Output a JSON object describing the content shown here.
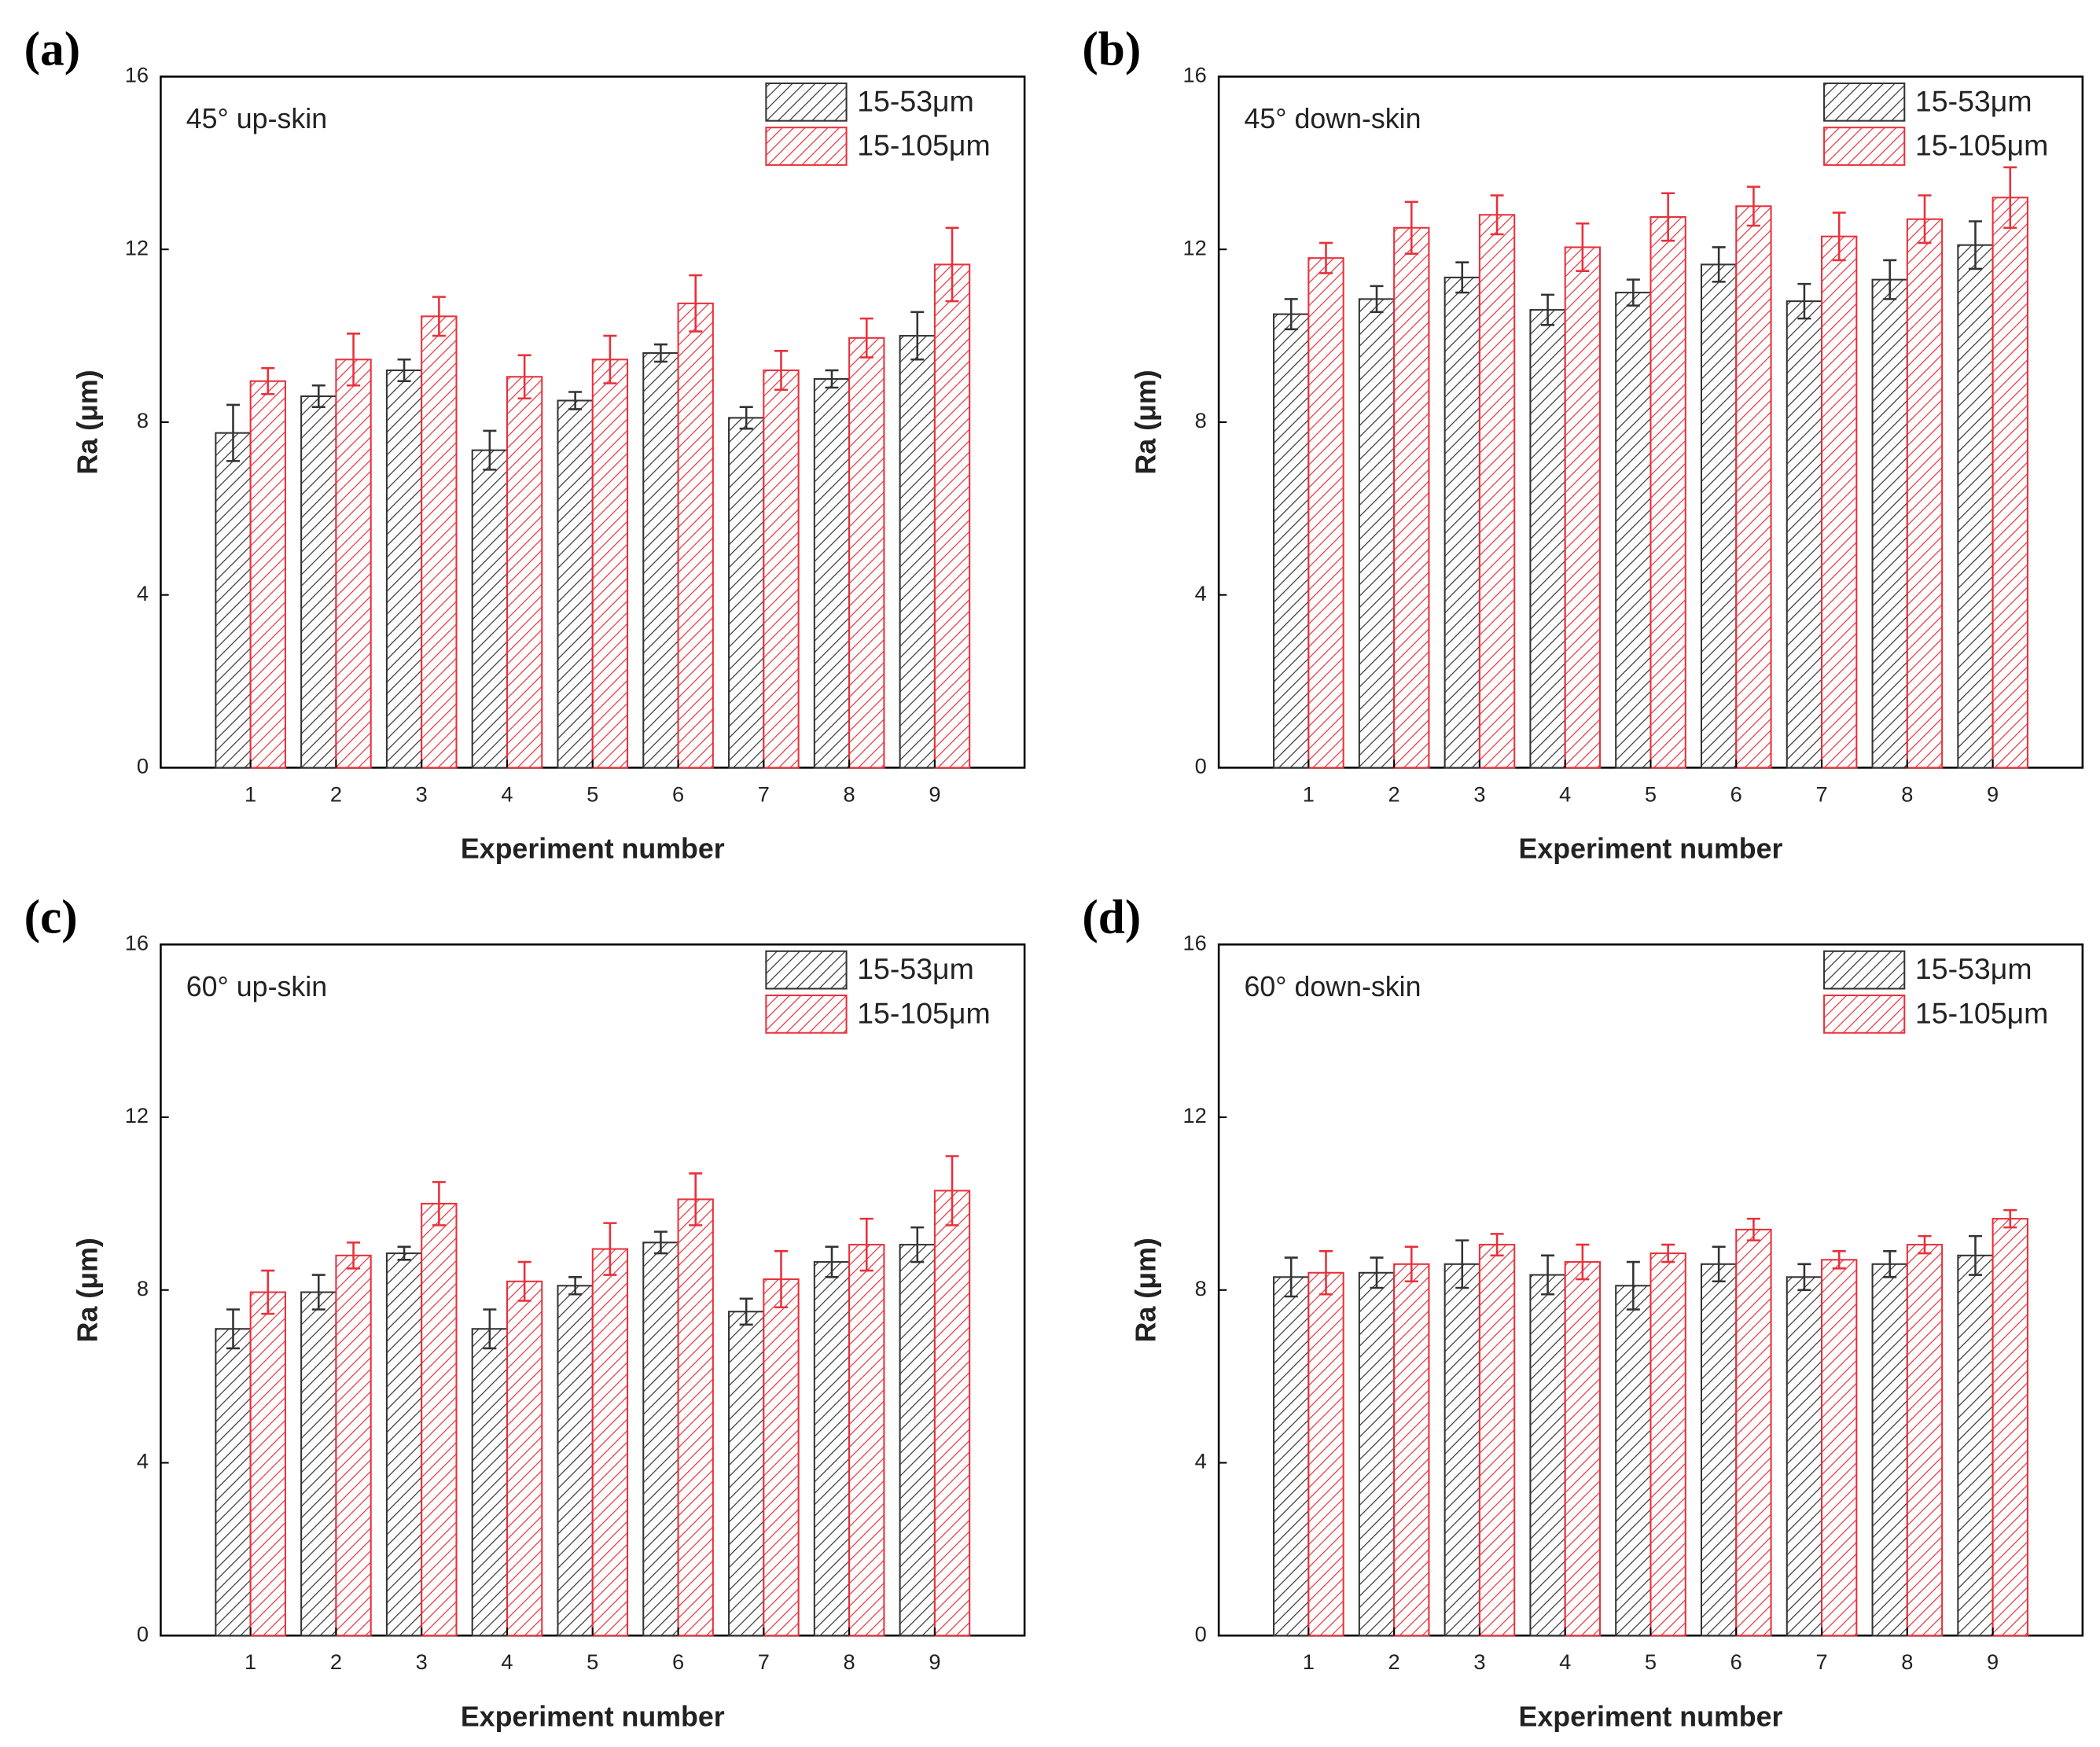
{
  "chart_data": [
    {
      "type": "bar",
      "panel_label": "(a)",
      "annotation": "45° up-skin",
      "x_label": "Experiment number",
      "y_label": "Ra (μm)",
      "categories": [
        "1",
        "2",
        "3",
        "4",
        "5",
        "6",
        "7",
        "8",
        "9"
      ],
      "series": [
        {
          "name": "15-53μm",
          "color": "#333333",
          "values": [
            7.75,
            8.6,
            9.2,
            7.35,
            8.5,
            9.6,
            8.1,
            9.0,
            10.0
          ],
          "errors": [
            0.65,
            0.25,
            0.25,
            0.45,
            0.2,
            0.2,
            0.25,
            0.2,
            0.55
          ]
        },
        {
          "name": "15-105μm",
          "color": "#e8303a",
          "values": [
            8.95,
            9.45,
            10.45,
            9.05,
            9.45,
            10.75,
            9.2,
            9.95,
            11.65
          ],
          "errors": [
            0.3,
            0.6,
            0.45,
            0.5,
            0.55,
            0.65,
            0.45,
            0.45,
            0.85
          ]
        }
      ],
      "ylim": [
        0,
        16
      ],
      "yticks": [
        0,
        4,
        8,
        12,
        16
      ],
      "grid": false,
      "legend": "upper right"
    },
    {
      "type": "bar",
      "panel_label": "(b)",
      "annotation": "45° down-skin",
      "x_label": "Experiment number",
      "y_label": "Ra (μm)",
      "categories": [
        "1",
        "2",
        "3",
        "4",
        "5",
        "6",
        "7",
        "8",
        "9"
      ],
      "series": [
        {
          "name": "15-53μm",
          "color": "#333333",
          "values": [
            10.5,
            10.85,
            11.35,
            10.6,
            11.0,
            11.65,
            10.8,
            11.3,
            12.1
          ],
          "errors": [
            0.35,
            0.3,
            0.35,
            0.35,
            0.3,
            0.4,
            0.4,
            0.45,
            0.55
          ]
        },
        {
          "name": "15-105μm",
          "color": "#e8303a",
          "values": [
            11.8,
            12.5,
            12.8,
            12.05,
            12.75,
            13.0,
            12.3,
            12.7,
            13.2
          ],
          "errors": [
            0.35,
            0.6,
            0.45,
            0.55,
            0.55,
            0.45,
            0.55,
            0.55,
            0.7
          ]
        }
      ],
      "ylim": [
        0,
        16
      ],
      "yticks": [
        0,
        4,
        8,
        12,
        16
      ],
      "grid": false,
      "legend": "upper right"
    },
    {
      "type": "bar",
      "panel_label": "(c)",
      "annotation": "60° up-skin",
      "x_label": "Experiment number",
      "y_label": "Ra (μm)",
      "categories": [
        "1",
        "2",
        "3",
        "4",
        "5",
        "6",
        "7",
        "8",
        "9"
      ],
      "series": [
        {
          "name": "15-53μm",
          "color": "#333333",
          "values": [
            7.1,
            7.95,
            8.85,
            7.1,
            8.1,
            9.1,
            7.5,
            8.65,
            9.05
          ],
          "errors": [
            0.45,
            0.4,
            0.15,
            0.45,
            0.2,
            0.25,
            0.3,
            0.35,
            0.4
          ]
        },
        {
          "name": "15-105μm",
          "color": "#e8303a",
          "values": [
            7.95,
            8.8,
            10.0,
            8.2,
            8.95,
            10.1,
            8.25,
            9.05,
            10.3
          ],
          "errors": [
            0.5,
            0.3,
            0.5,
            0.45,
            0.6,
            0.6,
            0.65,
            0.6,
            0.8
          ]
        }
      ],
      "ylim": [
        0,
        16
      ],
      "yticks": [
        0,
        4,
        8,
        12,
        16
      ],
      "grid": false,
      "legend": "upper right"
    },
    {
      "type": "bar",
      "panel_label": "(d)",
      "annotation": "60° down-skin",
      "x_label": "Experiment number",
      "y_label": "Ra (μm)",
      "categories": [
        "1",
        "2",
        "3",
        "4",
        "5",
        "6",
        "7",
        "8",
        "9"
      ],
      "series": [
        {
          "name": "15-53μm",
          "color": "#333333",
          "values": [
            8.3,
            8.4,
            8.6,
            8.35,
            8.1,
            8.6,
            8.3,
            8.6,
            8.8
          ],
          "errors": [
            0.45,
            0.35,
            0.55,
            0.45,
            0.55,
            0.4,
            0.3,
            0.3,
            0.45
          ]
        },
        {
          "name": "15-105μm",
          "color": "#e8303a",
          "values": [
            8.4,
            8.6,
            9.05,
            8.65,
            8.85,
            9.4,
            8.7,
            9.05,
            9.65
          ],
          "errors": [
            0.5,
            0.4,
            0.25,
            0.4,
            0.2,
            0.25,
            0.2,
            0.2,
            0.2
          ]
        }
      ],
      "ylim": [
        0,
        16
      ],
      "yticks": [
        0,
        4,
        8,
        12,
        16
      ],
      "grid": false,
      "legend": "upper right"
    }
  ]
}
